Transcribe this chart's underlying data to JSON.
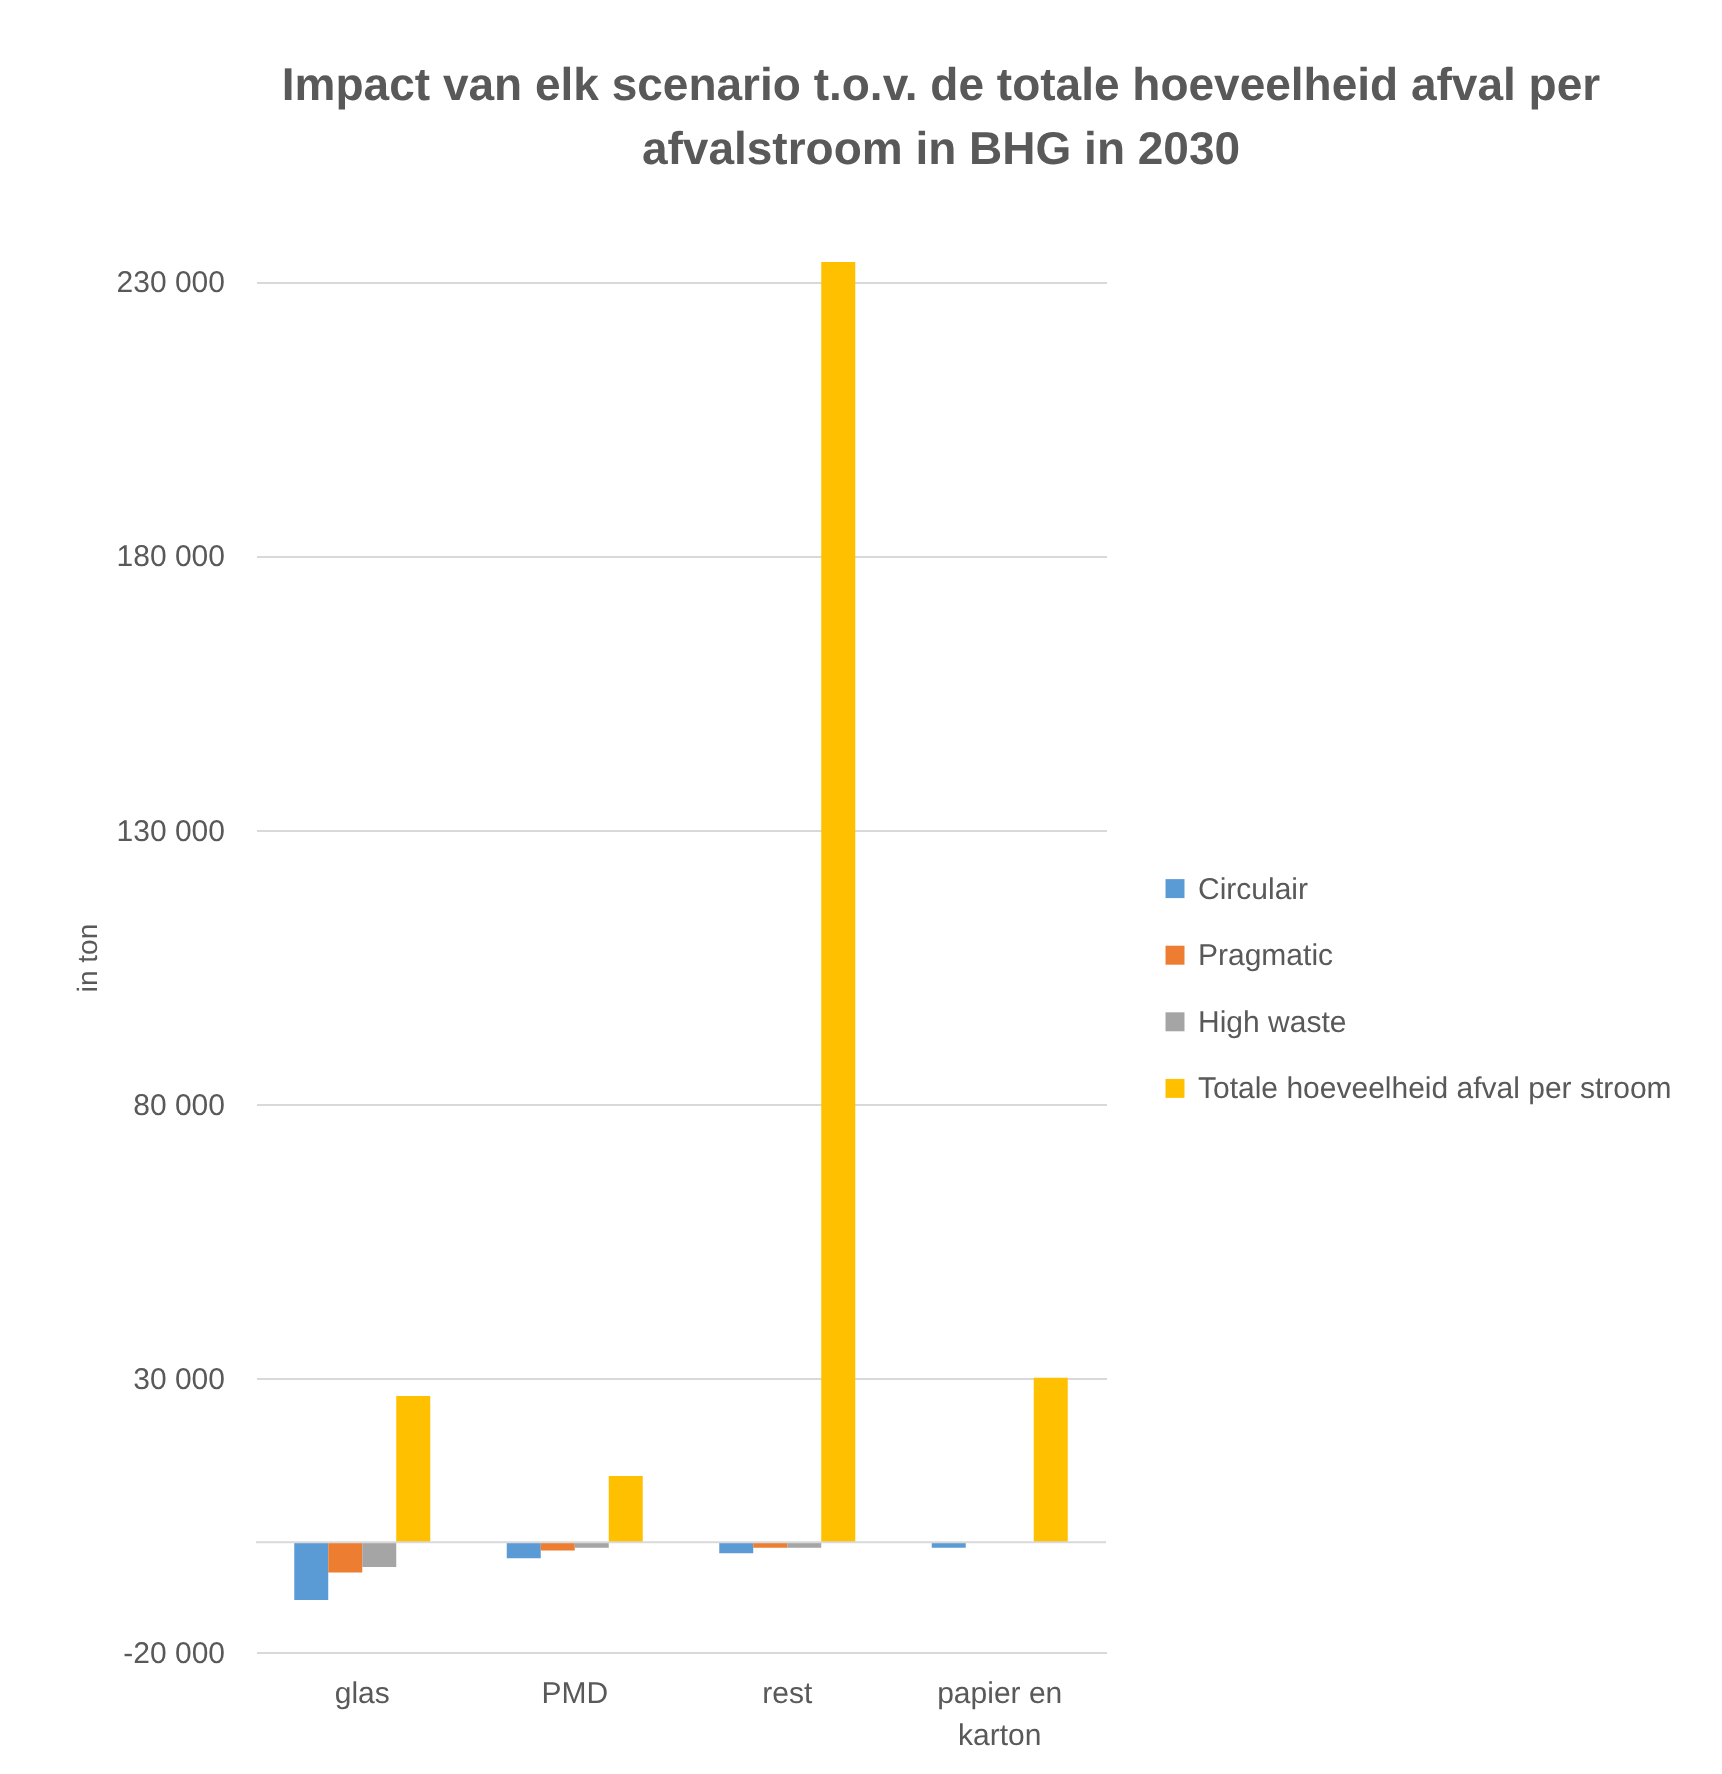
{
  "chart_data": {
    "type": "bar",
    "title": "Impact van elk scenario t.o.v. de totale hoeveelheid afval per afvalstroom in BHG in 2030",
    "ylabel": "in ton",
    "categories": [
      "glas",
      "PMD",
      "rest",
      "papier en karton"
    ],
    "series": [
      {
        "name": "Circulair",
        "color": "#5b9bd5",
        "values": [
          -10500,
          -2900,
          -2000,
          -1000
        ]
      },
      {
        "name": "Pragmatic",
        "color": "#ed7d31",
        "values": [
          -5500,
          -1500,
          -1000,
          null
        ]
      },
      {
        "name": "High waste",
        "color": "#a5a5a5",
        "values": [
          -4500,
          -1000,
          -1000,
          null
        ]
      },
      {
        "name": "Totale hoeveelheid afval per stroom",
        "color": "#ffc000",
        "values": [
          26700,
          12100,
          233500,
          30000
        ]
      }
    ],
    "ylim": [
      -20000,
      233500
    ],
    "yticks": [
      {
        "value": -20000,
        "label": "-20 000"
      },
      {
        "value": 30000,
        "label": "30 000"
      },
      {
        "value": 80000,
        "label": "80 000"
      },
      {
        "value": 130000,
        "label": "130 000"
      },
      {
        "value": 180000,
        "label": "180 000"
      },
      {
        "value": 230000,
        "label": "230 000"
      }
    ],
    "grid": "y",
    "legend": "right",
    "ref_lines": [
      {
        "axis": "y",
        "value": 0,
        "color": "#d9d9d9"
      }
    ]
  }
}
